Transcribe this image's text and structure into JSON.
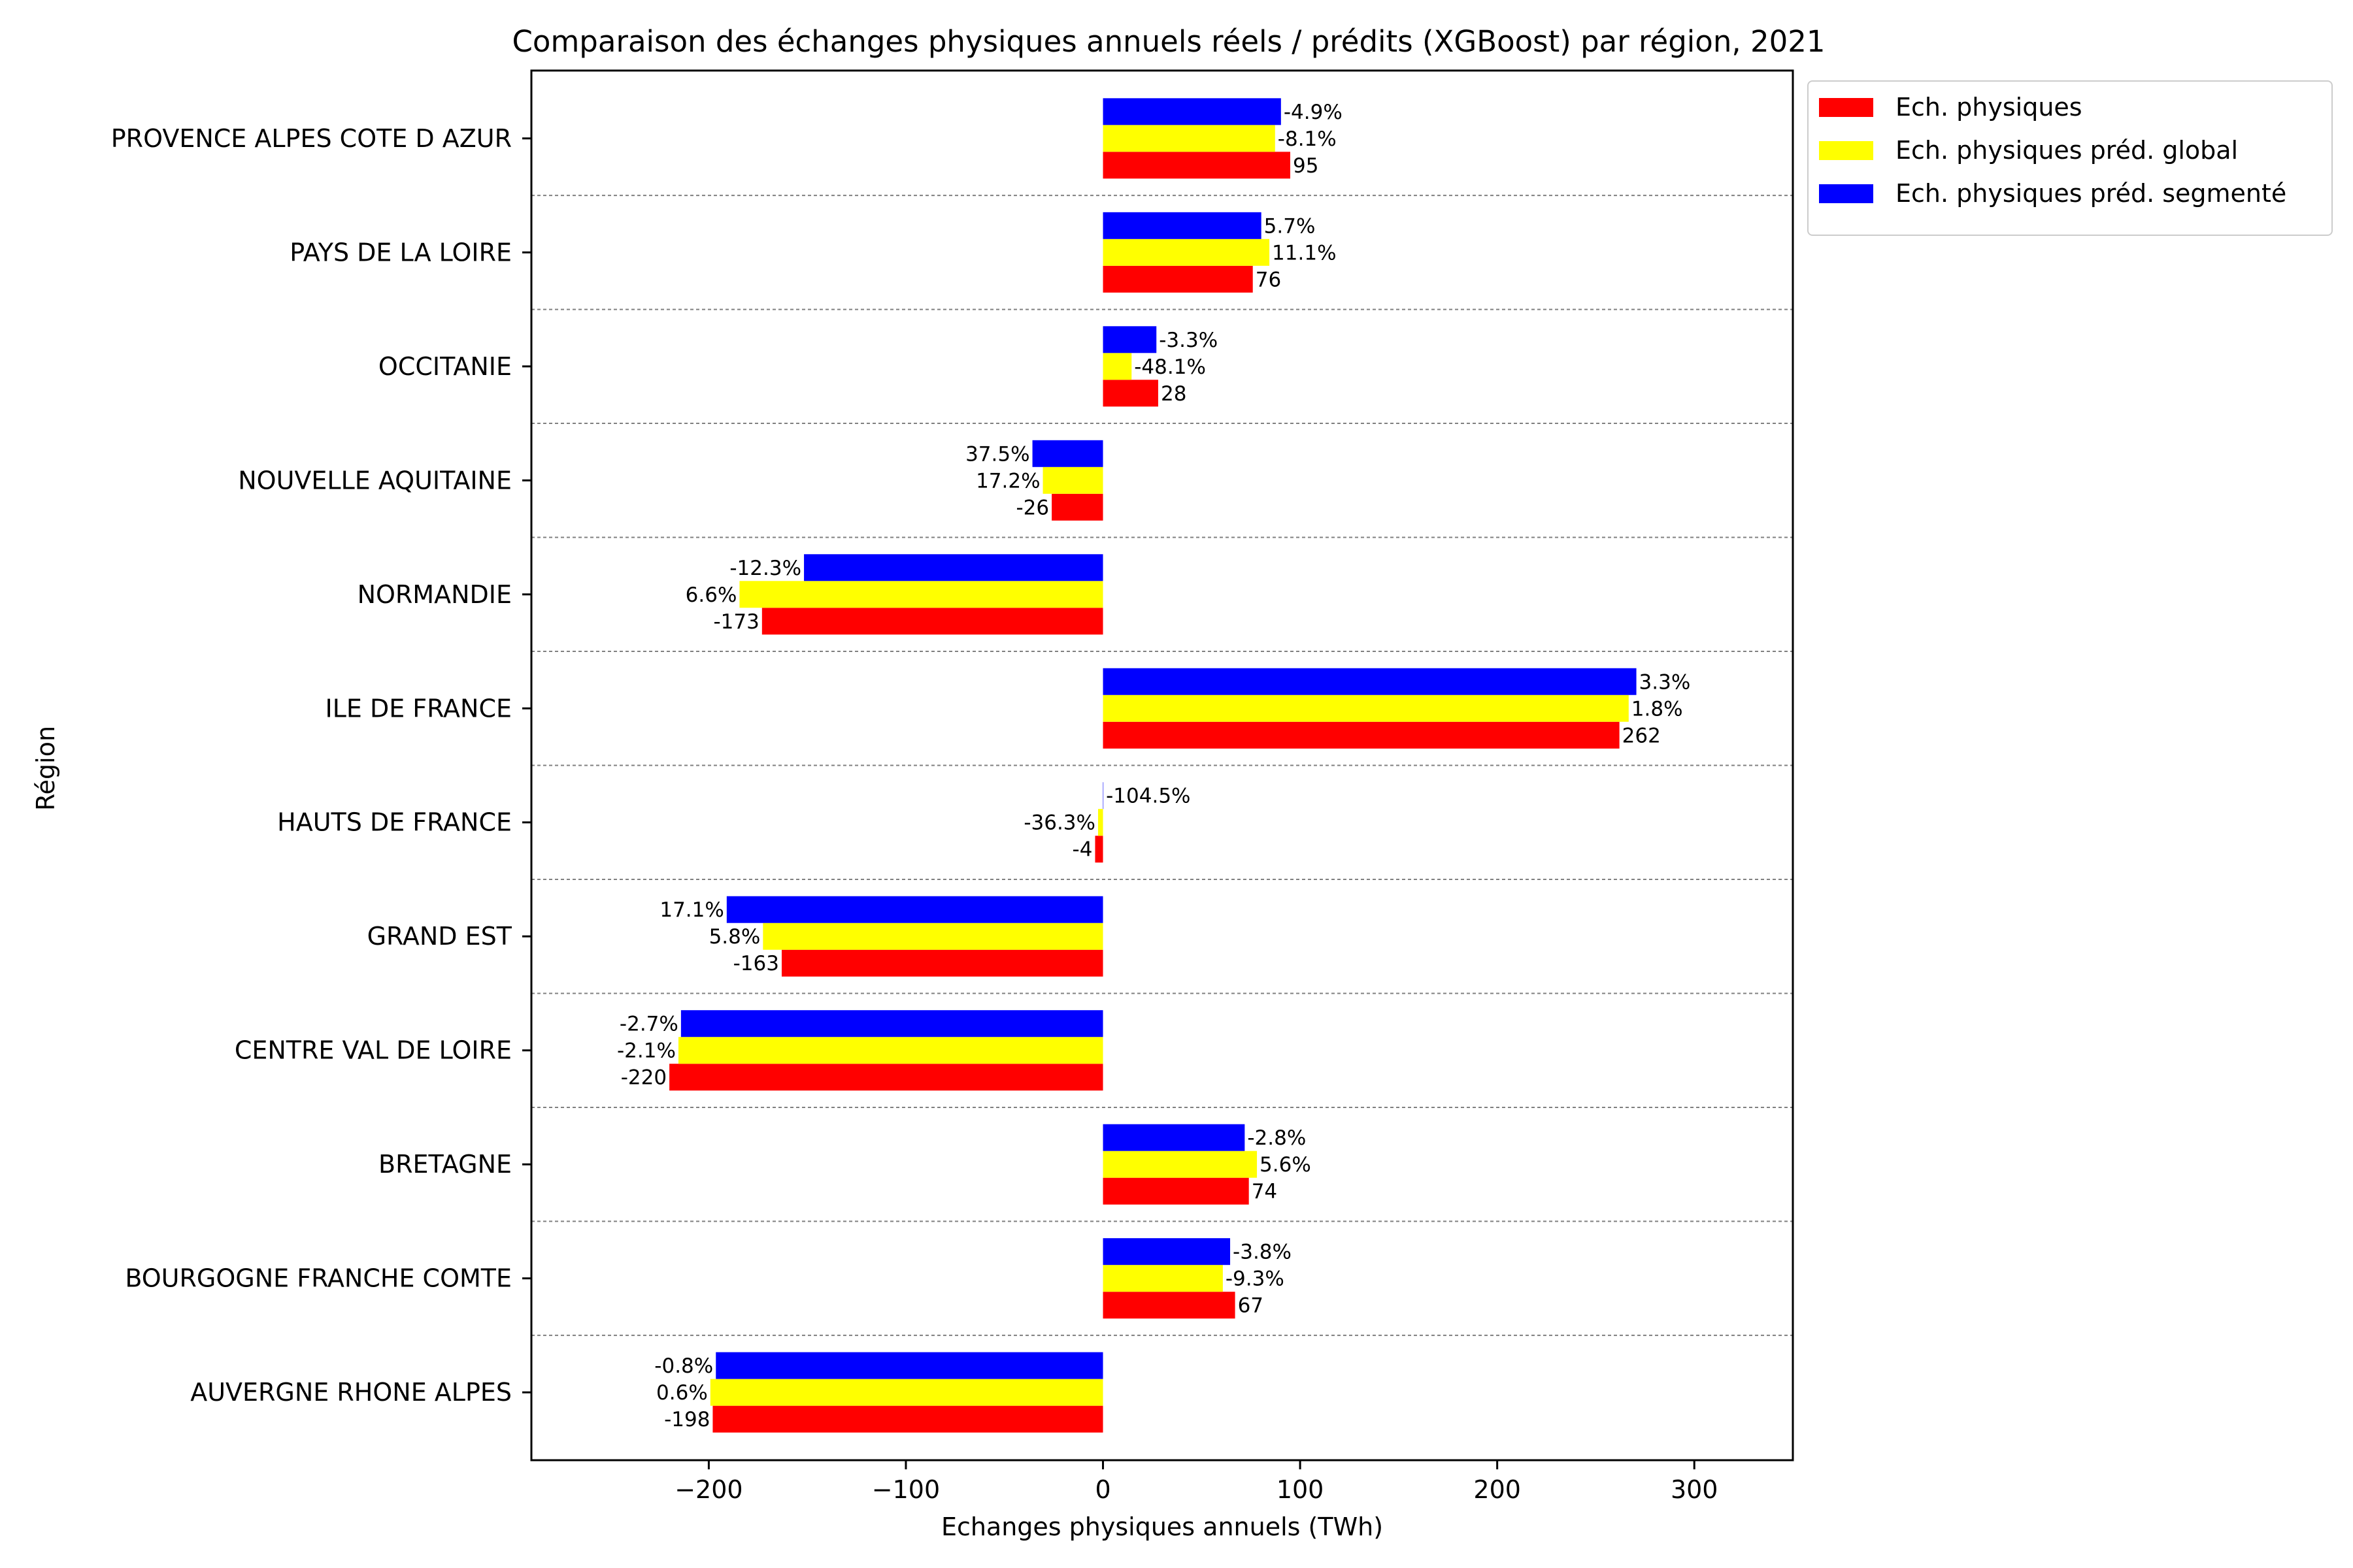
{
  "chart_data": {
    "type": "bar",
    "orientation": "horizontal",
    "title": "Comparaison des échanges physiques annuels réels / prédits (XGBoost) par région, 2021",
    "xlabel": "Echanges physiques annuels (TWh)",
    "ylabel": "Région",
    "xlim": [
      -290,
      350
    ],
    "xticks": [
      {
        "value": -200,
        "label": "−200"
      },
      {
        "value": -100,
        "label": "−100"
      },
      {
        "value": 0,
        "label": "0"
      },
      {
        "value": 100,
        "label": "100"
      },
      {
        "value": 200,
        "label": "200"
      },
      {
        "value": 300,
        "label": "300"
      }
    ],
    "grid": "dashed separators between regions",
    "legend_position": "outside-top-right",
    "categories": [
      "AUVERGNE RHONE ALPES",
      "BOURGOGNE FRANCHE COMTE",
      "BRETAGNE",
      "CENTRE VAL DE LOIRE",
      "GRAND EST",
      "HAUTS DE FRANCE",
      "ILE DE FRANCE",
      "NORMANDIE",
      "NOUVELLE AQUITAINE",
      "OCCITANIE",
      "PAYS DE LA LOIRE",
      "PROVENCE ALPES COTE D AZUR"
    ],
    "series": [
      {
        "name": "Ech. physiques",
        "color": "#ff0000",
        "values": [
          -198,
          67,
          74,
          -220,
          -163,
          -4,
          262,
          -173,
          -26,
          28,
          76,
          95
        ],
        "labels": [
          "-198",
          "67",
          "74",
          "-220",
          "-163",
          "-4",
          "262",
          "-173",
          "-26",
          "28",
          "76",
          "95"
        ]
      },
      {
        "name": "Ech. physiques préd. global",
        "color": "#ffff00",
        "values": [
          -199.2,
          60.8,
          78.1,
          -215.4,
          -172.5,
          -2.5,
          266.7,
          -184.4,
          -30.5,
          14.5,
          84.4,
          87.3
        ],
        "labels": [
          "0.6%",
          "-9.3%",
          "5.6%",
          "-2.1%",
          "5.8%",
          "-36.3%",
          "1.8%",
          "6.6%",
          "17.2%",
          "-48.1%",
          "11.1%",
          "-8.1%"
        ]
      },
      {
        "name": "Ech. physiques préd. segmenté",
        "color": "#0000ff",
        "values": [
          -196.4,
          64.5,
          71.9,
          -214.1,
          -190.9,
          0.2,
          270.6,
          -151.7,
          -35.8,
          27.1,
          80.3,
          90.3
        ],
        "labels": [
          "-0.8%",
          "-3.8%",
          "-2.8%",
          "-2.7%",
          "17.1%",
          "-104.5%",
          "3.3%",
          "-12.3%",
          "37.5%",
          "-3.3%",
          "5.7%",
          "-4.9%"
        ]
      }
    ]
  }
}
